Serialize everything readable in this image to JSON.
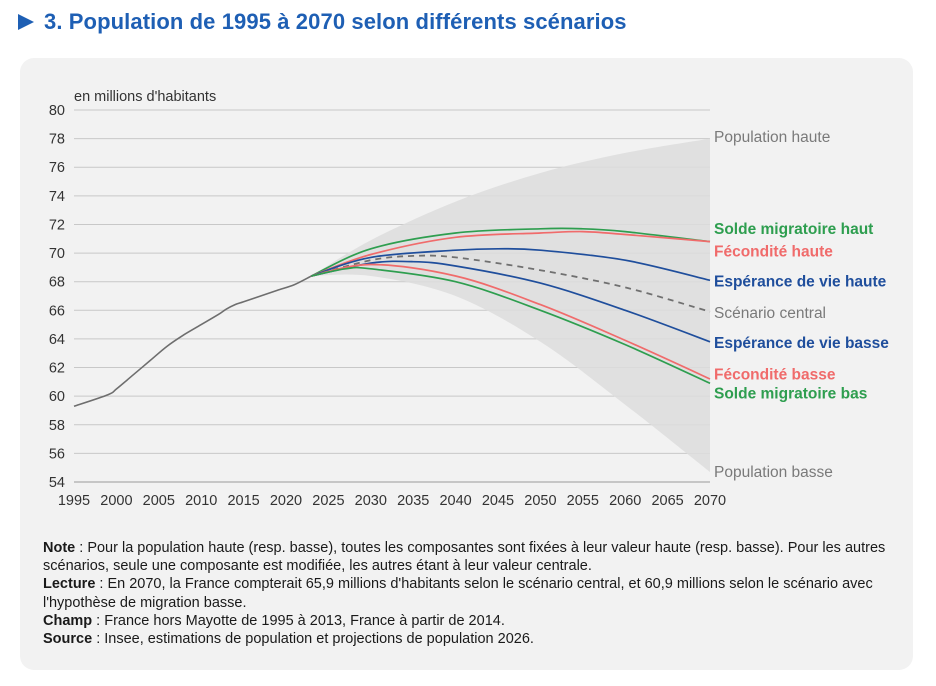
{
  "title": "3. Population de 1995 à 2070 selon différents scénarios",
  "colors": {
    "accent": "#1e5fb4",
    "green": "#2e9e4f",
    "red": "#f06b6b",
    "blue": "#1f4e9c",
    "grey": "#7a7a7a",
    "band": "#dddddd"
  },
  "chart_data": {
    "type": "line",
    "unit_label": "en millions d'habitants",
    "xlim": [
      1995,
      2070
    ],
    "ylim": [
      54,
      80
    ],
    "x_ticks": [
      "1995",
      "2000",
      "2005",
      "2010",
      "2015",
      "2020",
      "2025",
      "2030",
      "2035",
      "2040",
      "2045",
      "2050",
      "2055",
      "2060",
      "2065",
      "2070"
    ],
    "y_ticks": [
      "80",
      "78",
      "76",
      "74",
      "72",
      "70",
      "68",
      "66",
      "64",
      "62",
      "60",
      "58",
      "56",
      "54"
    ],
    "grid": "horizontal",
    "historical": {
      "x": [
        1995,
        1999,
        2000,
        2002,
        2004,
        2006,
        2008,
        2010,
        2012,
        2013,
        2014,
        2015,
        2017,
        2019,
        2021,
        2023
      ],
      "y": [
        59.3,
        60.1,
        60.5,
        61.5,
        62.5,
        63.5,
        64.3,
        65.0,
        65.7,
        66.1,
        66.4,
        66.6,
        67.0,
        67.4,
        67.8,
        68.4
      ]
    },
    "band": {
      "label_high": "Population haute",
      "label_low": "Population basse",
      "x": [
        2023,
        2030,
        2040,
        2050,
        2060,
        2070
      ],
      "high": [
        68.4,
        70.9,
        73.6,
        75.6,
        77.0,
        78.0
      ],
      "low": [
        68.4,
        68.4,
        67.0,
        63.8,
        59.4,
        54.7
      ]
    },
    "series": [
      {
        "name": "Solde migratoire haut",
        "color": "#2e9e4f",
        "dashed": false,
        "x": [
          2023,
          2030,
          2040,
          2050,
          2055,
          2060,
          2070
        ],
        "y": [
          68.4,
          70.3,
          71.4,
          71.7,
          71.7,
          71.5,
          70.8
        ]
      },
      {
        "name": "Fécondité haute",
        "color": "#f06b6b",
        "dashed": false,
        "x": [
          2023,
          2030,
          2040,
          2050,
          2055,
          2060,
          2070
        ],
        "y": [
          68.4,
          69.9,
          71.1,
          71.4,
          71.5,
          71.3,
          70.8
        ]
      },
      {
        "name": "Espérance de vie haute",
        "color": "#1f4e9c",
        "dashed": false,
        "x": [
          2023,
          2030,
          2040,
          2045,
          2050,
          2060,
          2070
        ],
        "y": [
          68.4,
          69.7,
          70.2,
          70.3,
          70.2,
          69.5,
          68.1
        ]
      },
      {
        "name": "Scénario central",
        "color": "#707070",
        "dashed": true,
        "x": [
          2023,
          2030,
          2035,
          2040,
          2050,
          2060,
          2070
        ],
        "y": [
          68.4,
          69.5,
          69.8,
          69.7,
          68.8,
          67.6,
          65.9
        ]
      },
      {
        "name": "Espérance de vie basse",
        "color": "#1f4e9c",
        "dashed": false,
        "x": [
          2023,
          2030,
          2035,
          2040,
          2050,
          2060,
          2070
        ],
        "y": [
          68.4,
          69.3,
          69.4,
          69.1,
          67.9,
          66.0,
          63.8
        ]
      },
      {
        "name": "Fécondité basse",
        "color": "#f06b6b",
        "dashed": false,
        "x": [
          2023,
          2030,
          2040,
          2050,
          2060,
          2070
        ],
        "y": [
          68.4,
          69.2,
          68.4,
          66.4,
          63.9,
          61.2
        ]
      },
      {
        "name": "Solde migratoire bas",
        "color": "#2e9e4f",
        "dashed": false,
        "x": [
          2023,
          2027,
          2030,
          2040,
          2050,
          2060,
          2070
        ],
        "y": [
          68.4,
          68.9,
          68.9,
          68.0,
          66.0,
          63.6,
          60.9
        ]
      }
    ],
    "labels": [
      {
        "text": "Population haute",
        "y": 78.1,
        "color": "#7a7a7a"
      },
      {
        "text": "Solde migratoire haut",
        "y": 71.7,
        "color": "#2e9e4f"
      },
      {
        "text": "Fécondité haute",
        "y": 70.1,
        "color": "#f06b6b"
      },
      {
        "text": "Espérance de vie haute",
        "y": 68.0,
        "color": "#1f4e9c"
      },
      {
        "text": "Scénario central",
        "y": 65.8,
        "color": "#7a7a7a"
      },
      {
        "text": "Espérance de vie basse",
        "y": 63.7,
        "color": "#1f4e9c"
      },
      {
        "text": "Fécondité basse",
        "y": 61.5,
        "color": "#f06b6b"
      },
      {
        "text": "Solde migratoire bas",
        "y": 60.2,
        "color": "#2e9e4f"
      },
      {
        "text": "Population basse",
        "y": 54.7,
        "color": "#7a7a7a"
      }
    ]
  },
  "notes": [
    {
      "label": "Note",
      "text": " : Pour la population haute (resp. basse), toutes les composantes sont fixées à leur valeur haute (resp. basse). Pour les autres scénarios, seule une composante est modifiée, les autres étant à leur valeur centrale."
    },
    {
      "label": "Lecture",
      "text": " : En 2070, la France compterait 65,9 millions d'habitants selon le scénario central, et 60,9 millions selon le scénario avec l'hypothèse de migration basse."
    },
    {
      "label": "Champ",
      "text": " : France hors Mayotte de 1995 à 2013, France à partir de 2014."
    },
    {
      "label": "Source",
      "text": " : Insee, estimations de population et projections de population 2026."
    }
  ]
}
